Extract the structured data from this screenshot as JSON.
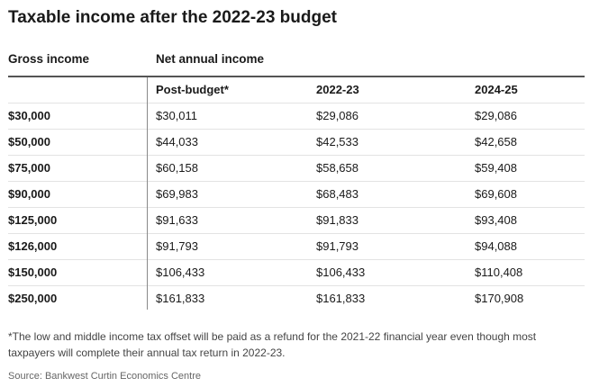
{
  "title": "Taxable income after the 2022-23 budget",
  "group_headers": {
    "gross": "Gross income",
    "net": "Net annual income"
  },
  "columns": [
    "",
    "Post-budget*",
    "2022-23",
    "2024-25"
  ],
  "rows": [
    [
      "$30,000",
      "$30,011",
      "$29,086",
      "$29,086"
    ],
    [
      "$50,000",
      "$44,033",
      "$42,533",
      "$42,658"
    ],
    [
      "$75,000",
      "$60,158",
      "$58,658",
      "$59,408"
    ],
    [
      "$90,000",
      "$69,983",
      "$68,483",
      "$69,608"
    ],
    [
      "$125,000",
      "$91,633",
      "$91,833",
      "$93,408"
    ],
    [
      "$126,000",
      "$91,793",
      "$91,793",
      "$94,088"
    ],
    [
      "$150,000",
      "$106,433",
      "$106,433",
      "$110,408"
    ],
    [
      "$250,000",
      "$161,833",
      "$161,833",
      "$170,908"
    ]
  ],
  "footnote": "*The low and middle income tax offset will be paid as a refund for the 2021-22 financial year even though most taxpayers will complete their annual tax return in 2022-23.",
  "source": "Source: Bankwest Curtin Economics Centre"
}
